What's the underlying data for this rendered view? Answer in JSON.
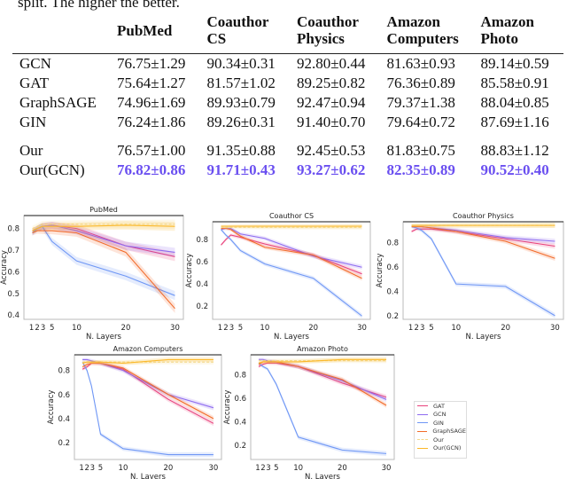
{
  "caption": "split. The higher the better.",
  "table": {
    "headers": [
      "",
      "PubMed",
      "Coauthor CS",
      "Coauthor Physics",
      "Amazon Computers",
      "Amazon Photo"
    ],
    "header_lines": [
      [
        "",
        ""
      ],
      [
        "PubMed",
        ""
      ],
      [
        "Coauthor",
        "CS"
      ],
      [
        "Coauthor",
        "Physics"
      ],
      [
        "Amazon",
        "Computers"
      ],
      [
        "Amazon",
        "Photo"
      ]
    ],
    "rows": [
      {
        "method": "GCN",
        "values": [
          "76.75±1.29",
          "90.34±0.31",
          "92.80±0.44",
          "81.63±0.93",
          "89.14±0.59"
        ]
      },
      {
        "method": "GAT",
        "values": [
          "75.64±1.27",
          "81.57±1.02",
          "89.25±0.82",
          "76.36±0.89",
          "85.58±0.91"
        ]
      },
      {
        "method": "GraphSAGE",
        "values": [
          "74.96±1.69",
          "89.93±0.79",
          "92.47±0.94",
          "79.37±1.38",
          "88.04±0.85"
        ]
      },
      {
        "method": "GIN",
        "values": [
          "76.24±1.86",
          "89.26±0.31",
          "91.40±0.70",
          "79.64±0.72",
          "87.69±1.16"
        ]
      },
      {
        "method": "Our",
        "values": [
          "76.57±1.00",
          "91.35±0.88",
          "92.45±0.53",
          "81.83±0.75",
          "88.83±1.12"
        ]
      },
      {
        "method": "Our(GCN)",
        "values": [
          "76.82±0.86",
          "91.71±0.43",
          "93.27±0.62",
          "82.35±0.89",
          "90.52±0.40"
        ],
        "highlight": true
      }
    ],
    "highlight_color": "#6a4ff0"
  },
  "series_styles": [
    {
      "name": "GAT",
      "color": "#e8417c",
      "dash": false
    },
    {
      "name": "GCN",
      "color": "#8e6cf0",
      "dash": false
    },
    {
      "name": "GIN",
      "color": "#6f97f5",
      "dash": false
    },
    {
      "name": "GraphSAGE",
      "color": "#f26b2a",
      "dash": false
    },
    {
      "name": "Our",
      "color": "#f3d98a",
      "dash": true
    },
    {
      "name": "Our(GCN)",
      "color": "#fbb829",
      "dash": false
    }
  ],
  "chart_data": [
    {
      "type": "line",
      "title": "PubMed",
      "xlabel": "N. Layers",
      "ylabel": "Accuracy",
      "x": [
        1,
        2,
        3,
        5,
        10,
        20,
        30
      ],
      "xticks": [
        "1",
        "2",
        "3",
        "5",
        "10",
        "20",
        "30"
      ],
      "yticks": [
        0.4,
        0.5,
        0.6,
        0.7,
        0.8
      ],
      "ylim": [
        0.38,
        0.86
      ],
      "legend": "none",
      "series": [
        {
          "name": "GAT",
          "values": [
            0.79,
            0.8,
            0.81,
            0.815,
            0.8,
            0.72,
            0.67
          ]
        },
        {
          "name": "GCN",
          "values": [
            0.78,
            0.8,
            0.81,
            0.815,
            0.79,
            0.72,
            0.69
          ]
        },
        {
          "name": "GIN",
          "values": [
            0.78,
            0.8,
            0.81,
            0.74,
            0.65,
            0.58,
            0.49
          ]
        },
        {
          "name": "GraphSAGE",
          "values": [
            0.78,
            0.79,
            0.79,
            0.79,
            0.78,
            0.69,
            0.43
          ]
        },
        {
          "name": "Our",
          "values": [
            0.8,
            0.81,
            0.82,
            0.82,
            0.82,
            0.82,
            0.82
          ]
        },
        {
          "name": "Our(GCN)",
          "values": [
            0.79,
            0.8,
            0.81,
            0.81,
            0.81,
            0.815,
            0.81
          ]
        }
      ]
    },
    {
      "type": "line",
      "title": "Coauthor CS",
      "xlabel": "N. Layers",
      "ylabel": "Accuracy",
      "x": [
        1,
        2,
        3,
        5,
        10,
        20,
        30
      ],
      "xticks": [
        "1",
        "2",
        "3",
        "5",
        "10",
        "20",
        "30"
      ],
      "yticks": [
        0.2,
        0.4,
        0.6,
        0.8
      ],
      "ylim": [
        0.08,
        0.96
      ],
      "legend": "none",
      "series": [
        {
          "name": "GAT",
          "values": [
            0.75,
            0.8,
            0.84,
            0.82,
            0.76,
            0.66,
            0.49
          ]
        },
        {
          "name": "GCN",
          "values": [
            0.89,
            0.9,
            0.9,
            0.85,
            0.81,
            0.65,
            0.55
          ]
        },
        {
          "name": "GIN",
          "values": [
            0.89,
            0.84,
            0.8,
            0.7,
            0.58,
            0.45,
            0.11
          ]
        },
        {
          "name": "GraphSAGE",
          "values": [
            0.9,
            0.9,
            0.89,
            0.83,
            0.73,
            0.66,
            0.45
          ]
        },
        {
          "name": "Our",
          "values": [
            0.91,
            0.91,
            0.91,
            0.91,
            0.91,
            0.91,
            0.91
          ]
        },
        {
          "name": "Our(GCN)",
          "values": [
            0.92,
            0.92,
            0.92,
            0.92,
            0.92,
            0.92,
            0.92
          ]
        }
      ]
    },
    {
      "type": "line",
      "title": "Coauthor Physics",
      "xlabel": "N. Layers",
      "ylabel": "Accuracy",
      "x": [
        1,
        2,
        3,
        5,
        10,
        20,
        30
      ],
      "xticks": [
        "1",
        "2",
        "3",
        "5",
        "10",
        "20",
        "30"
      ],
      "yticks": [
        0.2,
        0.4,
        0.6,
        0.8
      ],
      "ylim": [
        0.17,
        0.97
      ],
      "legend": "none",
      "series": [
        {
          "name": "GAT",
          "values": [
            0.89,
            0.91,
            0.91,
            0.91,
            0.89,
            0.83,
            0.77
          ]
        },
        {
          "name": "GCN",
          "values": [
            0.93,
            0.93,
            0.93,
            0.92,
            0.9,
            0.84,
            0.81
          ]
        },
        {
          "name": "GIN",
          "values": [
            0.93,
            0.92,
            0.9,
            0.83,
            0.46,
            0.44,
            0.2
          ]
        },
        {
          "name": "GraphSAGE",
          "values": [
            0.93,
            0.93,
            0.93,
            0.92,
            0.89,
            0.81,
            0.67
          ]
        },
        {
          "name": "Our",
          "values": [
            0.94,
            0.94,
            0.94,
            0.94,
            0.94,
            0.94,
            0.94
          ]
        },
        {
          "name": "Our(GCN)",
          "values": [
            0.94,
            0.94,
            0.94,
            0.94,
            0.94,
            0.94,
            0.94
          ]
        }
      ]
    },
    {
      "type": "line",
      "title": "Amazon Computers",
      "xlabel": "N. Layers",
      "ylabel": "Accuracy",
      "x": [
        1,
        2,
        3,
        5,
        10,
        20,
        30
      ],
      "xticks": [
        "1",
        "2",
        "3",
        "5",
        "10",
        "20",
        "30"
      ],
      "yticks": [
        0.2,
        0.4,
        0.6,
        0.8
      ],
      "ylim": [
        0.06,
        0.93
      ],
      "legend": "none",
      "series": [
        {
          "name": "GAT",
          "values": [
            0.81,
            0.83,
            0.86,
            0.86,
            0.81,
            0.56,
            0.36
          ]
        },
        {
          "name": "GCN",
          "values": [
            0.89,
            0.89,
            0.88,
            0.86,
            0.8,
            0.6,
            0.49
          ]
        },
        {
          "name": "GIN",
          "values": [
            0.87,
            0.8,
            0.67,
            0.27,
            0.15,
            0.1,
            0.1
          ]
        },
        {
          "name": "GraphSAGE",
          "values": [
            0.83,
            0.85,
            0.86,
            0.86,
            0.82,
            0.6,
            0.4
          ]
        },
        {
          "name": "Our",
          "values": [
            0.87,
            0.87,
            0.87,
            0.87,
            0.87,
            0.87,
            0.87
          ]
        },
        {
          "name": "Our(GCN)",
          "values": [
            0.86,
            0.87,
            0.87,
            0.87,
            0.86,
            0.89,
            0.89
          ]
        }
      ]
    },
    {
      "type": "line",
      "title": "Amazon Photo",
      "xlabel": "N. Layers",
      "ylabel": "Accuracy",
      "x": [
        1,
        2,
        3,
        5,
        10,
        20,
        30
      ],
      "xticks": [
        "1",
        "2",
        "3",
        "5",
        "10",
        "20",
        "30"
      ],
      "yticks": [
        0.2,
        0.4,
        0.6,
        0.8
      ],
      "ylim": [
        0.08,
        0.97
      ],
      "legend": "lower-right-outside",
      "series": [
        {
          "name": "GAT",
          "values": [
            0.87,
            0.89,
            0.9,
            0.9,
            0.87,
            0.73,
            0.61
          ]
        },
        {
          "name": "GCN",
          "values": [
            0.93,
            0.93,
            0.92,
            0.91,
            0.87,
            0.75,
            0.59
          ]
        },
        {
          "name": "GIN",
          "values": [
            0.9,
            0.87,
            0.85,
            0.72,
            0.27,
            0.16,
            0.13
          ]
        },
        {
          "name": "GraphSAGE",
          "values": [
            0.89,
            0.91,
            0.91,
            0.91,
            0.87,
            0.76,
            0.54
          ]
        },
        {
          "name": "Our",
          "values": [
            0.92,
            0.92,
            0.92,
            0.92,
            0.92,
            0.92,
            0.92
          ]
        },
        {
          "name": "Our(GCN)",
          "values": [
            0.9,
            0.91,
            0.91,
            0.91,
            0.91,
            0.93,
            0.93
          ]
        }
      ]
    }
  ]
}
